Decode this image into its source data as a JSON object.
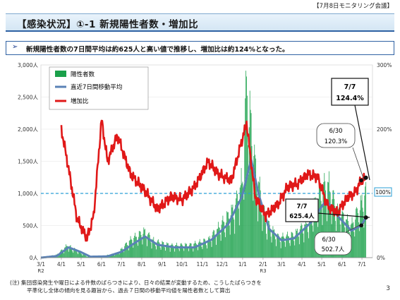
{
  "meeting_label": "【7月8日モニタリング会議】",
  "title": "【感染状況】①-1 新規陽性者数・増加比",
  "summary": "新規陽性者数の7日間平均は約625人と高い値で推移し、増加比は約124%となった。",
  "summary_marker": "➢",
  "note_line1": "(注) 集団感染発生や曜日による件数のばらつきにより、日々の結果が変動するため、こうしたばらつきを",
  "note_line2": "平準化し全体の傾向を見る趣旨から、過去７日間の移動平均値を陽性者数として算出",
  "page_number": "3",
  "chart_data": {
    "type": "bar",
    "y_left_ticks": [
      "0人",
      "500人",
      "1,000人",
      "1,500人",
      "2,000人",
      "2,500人",
      "3,000人"
    ],
    "y_left_range": [
      0,
      3000
    ],
    "y_right_ticks": [
      "0%",
      "100%",
      "200%",
      "300%"
    ],
    "y_right_range": [
      0,
      300
    ],
    "x_ticks": [
      "3/1",
      "4/1",
      "5/1",
      "6/1",
      "7/1",
      "8/1",
      "9/1",
      "10/1",
      "11/1",
      "12/1",
      "1/1",
      "2/1",
      "3/1",
      "4/1",
      "5/1",
      "6/1",
      "7/1"
    ],
    "year_labels": [
      "R2",
      "R3"
    ],
    "reference_line_pct": 100,
    "reference_label": "100%",
    "legend": [
      "陽性者数",
      "直近7日間移動平均",
      "増加比"
    ],
    "colors": {
      "bars": "#1aa04a",
      "average": "#5a82b6",
      "ratio": "#e01818",
      "reference": "#2a9fd6"
    },
    "start_date": "2020-03-01",
    "daily_cases_anchors": [
      {
        "date": "2020-03-01",
        "value": 0
      },
      {
        "date": "2020-03-25",
        "value": 40
      },
      {
        "date": "2020-04-10",
        "value": 170
      },
      {
        "date": "2020-04-25",
        "value": 100
      },
      {
        "date": "2020-05-10",
        "value": 20
      },
      {
        "date": "2020-06-01",
        "value": 20
      },
      {
        "date": "2020-06-25",
        "value": 60
      },
      {
        "date": "2020-07-15",
        "value": 250
      },
      {
        "date": "2020-08-05",
        "value": 370
      },
      {
        "date": "2020-08-20",
        "value": 230
      },
      {
        "date": "2020-09-15",
        "value": 170
      },
      {
        "date": "2020-10-15",
        "value": 180
      },
      {
        "date": "2020-11-10",
        "value": 250
      },
      {
        "date": "2020-12-01",
        "value": 480
      },
      {
        "date": "2020-12-20",
        "value": 700
      },
      {
        "date": "2021-01-01",
        "value": 1100
      },
      {
        "date": "2021-01-07",
        "value": 2450
      },
      {
        "date": "2021-01-20",
        "value": 1300
      },
      {
        "date": "2021-02-05",
        "value": 500
      },
      {
        "date": "2021-02-25",
        "value": 280
      },
      {
        "date": "2021-03-20",
        "value": 320
      },
      {
        "date": "2021-04-10",
        "value": 500
      },
      {
        "date": "2021-04-30",
        "value": 950
      },
      {
        "date": "2021-05-10",
        "value": 1050
      },
      {
        "date": "2021-05-25",
        "value": 650
      },
      {
        "date": "2021-06-15",
        "value": 450
      },
      {
        "date": "2021-07-07",
        "value": 920
      }
    ],
    "moving_average_anchors": [
      {
        "date": "2020-03-01",
        "value": 0
      },
      {
        "date": "2020-03-25",
        "value": 25
      },
      {
        "date": "2020-04-12",
        "value": 160
      },
      {
        "date": "2020-04-30",
        "value": 90
      },
      {
        "date": "2020-05-15",
        "value": 15
      },
      {
        "date": "2020-06-10",
        "value": 20
      },
      {
        "date": "2020-07-01",
        "value": 90
      },
      {
        "date": "2020-07-20",
        "value": 220
      },
      {
        "date": "2020-08-06",
        "value": 330
      },
      {
        "date": "2020-08-25",
        "value": 200
      },
      {
        "date": "2020-09-20",
        "value": 160
      },
      {
        "date": "2020-10-20",
        "value": 160
      },
      {
        "date": "2020-11-15",
        "value": 280
      },
      {
        "date": "2020-12-10",
        "value": 520
      },
      {
        "date": "2020-12-31",
        "value": 950
      },
      {
        "date": "2021-01-14",
        "value": 1530
      },
      {
        "date": "2021-01-25",
        "value": 1000
      },
      {
        "date": "2021-02-10",
        "value": 450
      },
      {
        "date": "2021-03-01",
        "value": 270
      },
      {
        "date": "2021-03-20",
        "value": 300
      },
      {
        "date": "2021-04-15",
        "value": 550
      },
      {
        "date": "2021-05-08",
        "value": 900
      },
      {
        "date": "2021-05-25",
        "value": 650
      },
      {
        "date": "2021-06-15",
        "value": 420
      },
      {
        "date": "2021-06-30",
        "value": 502.7
      },
      {
        "date": "2021-07-07",
        "value": 625.4
      }
    ],
    "increase_ratio_anchors": [
      {
        "date": "2020-04-01",
        "value": 200
      },
      {
        "date": "2020-04-10",
        "value": 150
      },
      {
        "date": "2020-04-25",
        "value": 60
      },
      {
        "date": "2020-05-10",
        "value": 30
      },
      {
        "date": "2020-05-20",
        "value": 65
      },
      {
        "date": "2020-06-01",
        "value": 215
      },
      {
        "date": "2020-06-10",
        "value": 150
      },
      {
        "date": "2020-06-25",
        "value": 190
      },
      {
        "date": "2020-07-15",
        "value": 130
      },
      {
        "date": "2020-08-05",
        "value": 105
      },
      {
        "date": "2020-08-25",
        "value": 75
      },
      {
        "date": "2020-09-15",
        "value": 95
      },
      {
        "date": "2020-10-01",
        "value": 90
      },
      {
        "date": "2020-10-20",
        "value": 110
      },
      {
        "date": "2020-11-10",
        "value": 150
      },
      {
        "date": "2020-11-25",
        "value": 130
      },
      {
        "date": "2020-12-15",
        "value": 120
      },
      {
        "date": "2021-01-07",
        "value": 210
      },
      {
        "date": "2021-01-20",
        "value": 95
      },
      {
        "date": "2021-02-05",
        "value": 65
      },
      {
        "date": "2021-02-25",
        "value": 85
      },
      {
        "date": "2021-03-10",
        "value": 110
      },
      {
        "date": "2021-03-25",
        "value": 115
      },
      {
        "date": "2021-04-10",
        "value": 130
      },
      {
        "date": "2021-04-25",
        "value": 125
      },
      {
        "date": "2021-05-10",
        "value": 80
      },
      {
        "date": "2021-05-25",
        "value": 70
      },
      {
        "date": "2021-06-10",
        "value": 95
      },
      {
        "date": "2021-06-20",
        "value": 100
      },
      {
        "date": "2021-06-30",
        "value": 120.3
      },
      {
        "date": "2021-07-07",
        "value": 124.4
      }
    ],
    "annotations": [
      {
        "id": "ratio_77",
        "date_label": "7/7",
        "value_label": "124.4%"
      },
      {
        "id": "ratio_630",
        "date_label": "6/30",
        "value_label": "120.3%"
      },
      {
        "id": "avg_77",
        "date_label": "7/7",
        "value_label": "625.4人"
      },
      {
        "id": "avg_630",
        "date_label": "6/30",
        "value_label": "502.7人"
      }
    ]
  }
}
